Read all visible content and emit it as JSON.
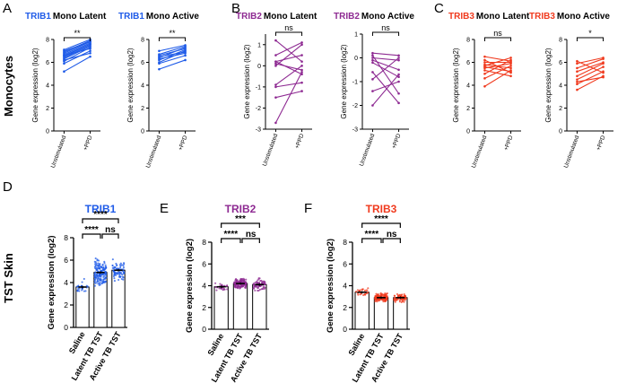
{
  "row_labels": {
    "monocytes": "Monocytes",
    "skin": "TST Skin"
  },
  "panel_letters": [
    "A",
    "B",
    "C",
    "D",
    "E",
    "F"
  ],
  "colors": {
    "TRIB1": "#1f5be8",
    "TRIB2": "#8e2a92",
    "TRIB3": "#f03a1e"
  },
  "chart_data": [
    {
      "type": "line",
      "panel": "A",
      "gene": "TRIB1",
      "title_suffix": "Mono Latent",
      "ylabel": "Gene expression (log2)",
      "ylim": [
        0,
        8
      ],
      "yticks": [
        0,
        2,
        4,
        6,
        8
      ],
      "categories": [
        "Unstimulated",
        "+PPD"
      ],
      "significance": "**",
      "pairs": [
        [
          5.2,
          6.5
        ],
        [
          5.9,
          7.0
        ],
        [
          6.1,
          7.3
        ],
        [
          6.3,
          7.4
        ],
        [
          6.4,
          7.5
        ],
        [
          6.5,
          7.6
        ],
        [
          6.6,
          7.6
        ],
        [
          6.7,
          7.7
        ],
        [
          6.8,
          7.8
        ],
        [
          6.9,
          7.9
        ],
        [
          7.0,
          7.8
        ],
        [
          7.1,
          8.0
        ],
        [
          6.2,
          6.8
        ],
        [
          6.6,
          7.2
        ]
      ]
    },
    {
      "type": "line",
      "panel": "A",
      "gene": "TRIB1",
      "title_suffix": "Mono Active",
      "ylabel": "Gene expression (log2)",
      "ylim": [
        0,
        8
      ],
      "yticks": [
        0,
        2,
        4,
        6,
        8
      ],
      "categories": [
        "Unstimulated",
        "+PPD"
      ],
      "significance": "**",
      "pairs": [
        [
          5.4,
          6.2
        ],
        [
          5.9,
          6.6
        ],
        [
          6.0,
          7.0
        ],
        [
          6.2,
          7.1
        ],
        [
          6.4,
          7.3
        ],
        [
          6.6,
          7.2
        ],
        [
          6.7,
          7.4
        ],
        [
          7.0,
          7.5
        ],
        [
          6.5,
          6.9
        ],
        [
          6.3,
          6.8
        ]
      ]
    },
    {
      "type": "line",
      "panel": "B",
      "gene": "TRIB2",
      "title_suffix": "Mono Latent",
      "ylabel": "Gene expression (log2)",
      "ylim": [
        -3,
        1.5
      ],
      "yticks": [
        -3,
        -2,
        -1,
        0,
        1
      ],
      "categories": [
        "Unstimulated",
        "+PPD"
      ],
      "significance": "ns",
      "pairs": [
        [
          -2.7,
          -0.3
        ],
        [
          -1.5,
          -1.2
        ],
        [
          -1.0,
          -0.8
        ],
        [
          -0.9,
          0.0
        ],
        [
          0.0,
          1.0
        ],
        [
          0.1,
          -0.2
        ],
        [
          0.2,
          0.5
        ],
        [
          0.2,
          -0.4
        ],
        [
          0.5,
          1.1
        ],
        [
          1.2,
          0.2
        ]
      ]
    },
    {
      "type": "line",
      "panel": "B",
      "gene": "TRIB2",
      "title_suffix": "Mono Active",
      "ylabel": "Gene expression (log2)",
      "ylim": [
        -3,
        1
      ],
      "yticks": [
        -3,
        -2,
        -1,
        0,
        1
      ],
      "categories": [
        "Unstimulated",
        "+PPD"
      ],
      "significance": "ns",
      "pairs": [
        [
          -2.0,
          -0.7
        ],
        [
          -1.4,
          -1.0
        ],
        [
          -0.9,
          0.0
        ],
        [
          -0.6,
          -1.9
        ],
        [
          -0.1,
          -0.5
        ],
        [
          0.0,
          -0.1
        ],
        [
          0.1,
          -1.5
        ],
        [
          0.2,
          0.1
        ],
        [
          -0.2,
          -0.8
        ]
      ]
    },
    {
      "type": "line",
      "panel": "C",
      "gene": "TRIB3",
      "title_suffix": "Mono Latent",
      "ylabel": "Gene expression (log2)",
      "ylim": [
        0,
        8
      ],
      "yticks": [
        0,
        2,
        4,
        6,
        8
      ],
      "categories": [
        "Unstimulated",
        "+PPD"
      ],
      "significance": "ns",
      "pairs": [
        [
          3.9,
          5.3
        ],
        [
          4.6,
          5.7
        ],
        [
          5.0,
          6.2
        ],
        [
          5.3,
          4.8
        ],
        [
          5.5,
          5.9
        ],
        [
          5.7,
          6.4
        ],
        [
          5.8,
          5.5
        ],
        [
          6.0,
          6.0
        ],
        [
          6.2,
          5.1
        ],
        [
          6.5,
          6.1
        ],
        [
          5.6,
          5.2
        ]
      ]
    },
    {
      "type": "line",
      "panel": "C",
      "gene": "TRIB3",
      "title_suffix": "Mono Active",
      "ylabel": "Gene expression (log2)",
      "ylim": [
        0,
        8
      ],
      "yticks": [
        0,
        2,
        4,
        6,
        8
      ],
      "categories": [
        "Unstimulated",
        "+PPD"
      ],
      "significance": "*",
      "pairs": [
        [
          3.6,
          4.8
        ],
        [
          4.1,
          5.2
        ],
        [
          4.5,
          5.6
        ],
        [
          4.8,
          5.9
        ],
        [
          5.2,
          6.0
        ],
        [
          5.5,
          6.3
        ],
        [
          5.9,
          6.4
        ],
        [
          6.1,
          5.1
        ],
        [
          4.3,
          4.7
        ]
      ]
    },
    {
      "type": "bar",
      "panel": "D",
      "gene": "TRIB1",
      "title": "TRIB1",
      "ylabel": "Gene expression (log2)",
      "ylim": [
        0,
        8
      ],
      "yticks": [
        0,
        2,
        4,
        6,
        8
      ],
      "categories": [
        "Saline",
        "Latent TB TST",
        "Active TB TST"
      ],
      "values": [
        3.6,
        4.9,
        5.1
      ],
      "spread": [
        0.6,
        1.1,
        0.9
      ],
      "counts": [
        26,
        160,
        75
      ],
      "comparisons": [
        {
          "from": 0,
          "to": 1,
          "label": "****",
          "level": 1
        },
        {
          "from": 1,
          "to": 2,
          "label": "ns",
          "level": 1
        },
        {
          "from": 0,
          "to": 2,
          "label": "****",
          "level": 2
        }
      ]
    },
    {
      "type": "bar",
      "panel": "E",
      "gene": "TRIB2",
      "title": "TRIB2",
      "ylabel": "Gene expression (log2)",
      "ylim": [
        0,
        8
      ],
      "yticks": [
        0,
        2,
        4,
        6,
        8
      ],
      "categories": [
        "Saline",
        "Latent TB TST",
        "Active TB TST"
      ],
      "values": [
        3.9,
        4.2,
        4.1
      ],
      "spread": [
        0.35,
        0.45,
        0.55
      ],
      "counts": [
        26,
        160,
        75
      ],
      "comparisons": [
        {
          "from": 0,
          "to": 1,
          "label": "****",
          "level": 1
        },
        {
          "from": 1,
          "to": 2,
          "label": "ns",
          "level": 1
        },
        {
          "from": 0,
          "to": 2,
          "label": "***",
          "level": 2
        }
      ]
    },
    {
      "type": "bar",
      "panel": "F",
      "gene": "TRIB3",
      "title": "TRIB3",
      "ylabel": "Gene expression (log2)",
      "ylim": [
        0,
        8
      ],
      "yticks": [
        0,
        2,
        4,
        6,
        8
      ],
      "categories": [
        "Saline",
        "Latent TB TST",
        "Active TB TST"
      ],
      "values": [
        3.4,
        2.9,
        2.9
      ],
      "spread": [
        0.4,
        0.35,
        0.35
      ],
      "counts": [
        26,
        160,
        75
      ],
      "comparisons": [
        {
          "from": 0,
          "to": 1,
          "label": "****",
          "level": 1
        },
        {
          "from": 1,
          "to": 2,
          "label": "ns",
          "level": 1
        },
        {
          "from": 0,
          "to": 2,
          "label": "****",
          "level": 2
        }
      ]
    }
  ]
}
